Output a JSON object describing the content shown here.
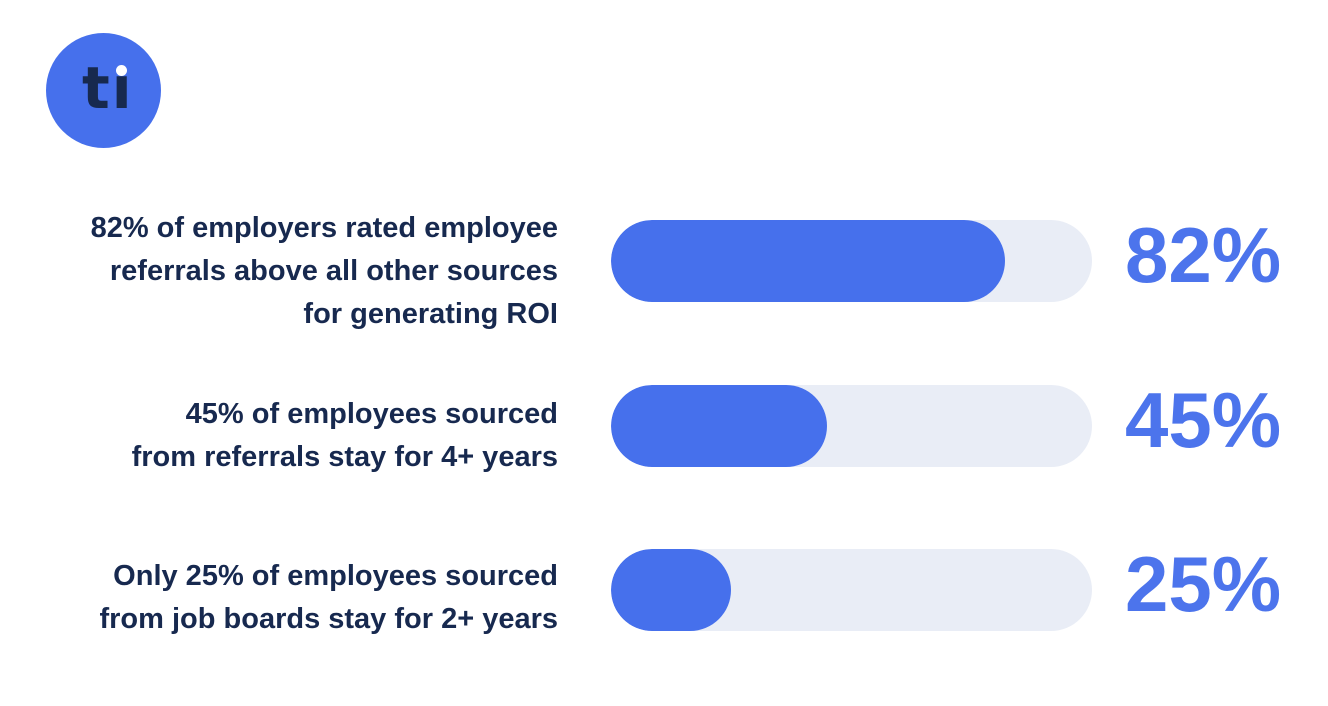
{
  "page": {
    "background_color": "#FFFFFF"
  },
  "logo": {
    "reads": "ti",
    "letters_display": "tı",
    "bg_color": "#4670EC",
    "letter_color": "#17294F",
    "dot_color": "#FFFFFF"
  },
  "chart_data": {
    "type": "bar",
    "orientation": "horizontal",
    "categories": [
      "82% of employers rated employee\nreferrals above all other sources\nfor generating ROI",
      "45% of employees sourced\nfrom referrals stay for 4+ years",
      "Only 25% of employees sourced\nfrom job boards stay for 2+ years"
    ],
    "values": [
      82,
      45,
      25
    ],
    "value_labels": [
      "82%",
      "45%",
      "25%"
    ],
    "xlim": [
      0,
      100
    ],
    "grid": false,
    "legend_position": "none",
    "bar_color": "#4670EC",
    "track_color": "#E9EDF6",
    "value_label_color": "#4C74EC",
    "category_label_color": "#17294F"
  }
}
